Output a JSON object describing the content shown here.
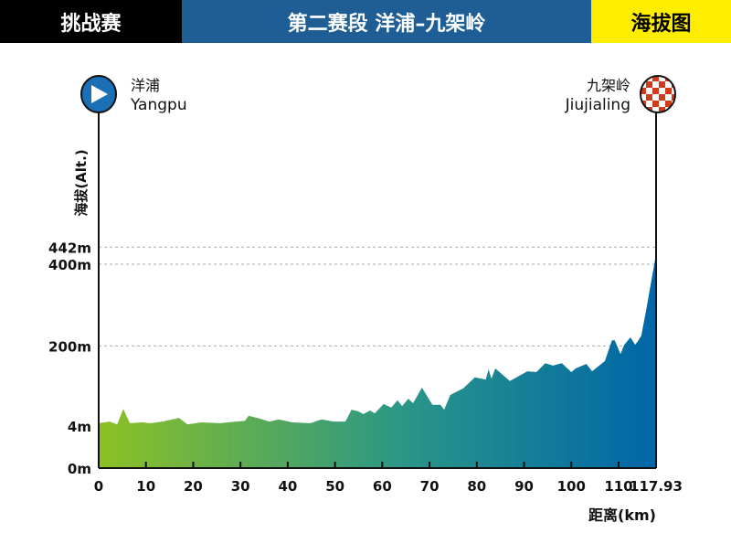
{
  "header": {
    "left": "挑战赛",
    "center": "第二赛段  洋浦–九架岭",
    "right": "海拔图"
  },
  "start": {
    "name_cn": "洋浦",
    "name_en": "Yangpu",
    "icon": "play-icon",
    "color": "#1a6fb5"
  },
  "finish": {
    "name_cn": "九架岭",
    "name_en": "Jiujialing",
    "icon": "checkered-flag-icon",
    "color": "#d23a1c"
  },
  "chart_data": {
    "type": "area",
    "title": "",
    "xlabel": "距离(km)",
    "ylabel": "海拔(Alt.)",
    "x_ticks": [
      "0",
      "10",
      "20",
      "30",
      "40",
      "50",
      "60",
      "70",
      "80",
      "90",
      "100",
      "110",
      "117.93"
    ],
    "y_ticks": [
      "0m",
      "4m",
      "200m",
      "400m",
      "442m"
    ],
    "xlim": [
      0,
      117.93
    ],
    "ylim": [
      0,
      442
    ],
    "grid": "dashed horizontal at y ticks",
    "gradient_colors": [
      "#8dc124",
      "#2a9688",
      "#0066a8"
    ],
    "points": [
      [
        0,
        11
      ],
      [
        2.3,
        15
      ],
      [
        3.9,
        8
      ],
      [
        5.2,
        46
      ],
      [
        6.6,
        11
      ],
      [
        9.1,
        13
      ],
      [
        11,
        11
      ],
      [
        13.5,
        15
      ],
      [
        17,
        24
      ],
      [
        18.8,
        8
      ],
      [
        21.7,
        13
      ],
      [
        25.5,
        11
      ],
      [
        31,
        17
      ],
      [
        31.7,
        29
      ],
      [
        34.2,
        22
      ],
      [
        36.1,
        15
      ],
      [
        38.1,
        20
      ],
      [
        41,
        13
      ],
      [
        44.8,
        11
      ],
      [
        47.2,
        20
      ],
      [
        49.7,
        15
      ],
      [
        52.2,
        15
      ],
      [
        53.5,
        44
      ],
      [
        54.9,
        40
      ],
      [
        56,
        33
      ],
      [
        57.4,
        42
      ],
      [
        58.4,
        35
      ],
      [
        60.3,
        58
      ],
      [
        61.9,
        49
      ],
      [
        63.2,
        67
      ],
      [
        64.2,
        53
      ],
      [
        65.5,
        71
      ],
      [
        66.5,
        60
      ],
      [
        68.4,
        98
      ],
      [
        70.6,
        56
      ],
      [
        72.3,
        56
      ],
      [
        73.1,
        44
      ],
      [
        74.4,
        80
      ],
      [
        77.1,
        96
      ],
      [
        79.6,
        123
      ],
      [
        81.9,
        118
      ],
      [
        82.5,
        143
      ],
      [
        83.1,
        120
      ],
      [
        83.9,
        145
      ],
      [
        87,
        114
      ],
      [
        90.7,
        138
      ],
      [
        92.6,
        136
      ],
      [
        94.5,
        158
      ],
      [
        96.1,
        152
      ],
      [
        98,
        158
      ],
      [
        100,
        136
      ],
      [
        100.9,
        145
      ],
      [
        103.2,
        156
      ],
      [
        104.4,
        138
      ],
      [
        107.1,
        163
      ],
      [
        108.6,
        214
      ],
      [
        109.2,
        214
      ],
      [
        110.4,
        180
      ],
      [
        111.2,
        203
      ],
      [
        112.5,
        221
      ],
      [
        113.5,
        203
      ],
      [
        114.1,
        212
      ],
      [
        114.8,
        225
      ],
      [
        115.8,
        286
      ],
      [
        117.93,
        425
      ]
    ]
  }
}
